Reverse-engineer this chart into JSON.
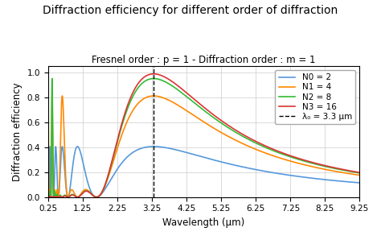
{
  "title": "Diffraction efficiency for different order of diffraction",
  "subtitle": "Fresnel order : p = 1 - Diffraction order : m = 1",
  "xlabel": "Wavelength (μm)",
  "ylabel": "Diffraction efficiency",
  "xlim": [
    0.25,
    9.25
  ],
  "ylim": [
    0.0,
    1.05
  ],
  "lambda0": 3.3,
  "xticks": [
    0.25,
    1.25,
    2.25,
    3.25,
    4.25,
    5.25,
    6.25,
    7.25,
    8.25,
    9.25
  ],
  "xtick_labels": [
    "0.25",
    "1.25",
    "2.25",
    "3.25",
    "4.25",
    "5.25",
    "6.25",
    "7.25",
    "8.25",
    "9.25"
  ],
  "yticks": [
    0.0,
    0.2,
    0.4,
    0.6,
    0.8,
    1.0
  ],
  "series": [
    {
      "N": 2,
      "p": 1,
      "m": 1,
      "color": "#5599dd",
      "label": "N0 = 2"
    },
    {
      "N": 4,
      "p": 1,
      "m": 1,
      "color": "#ff8800",
      "label": "N1 = 4"
    },
    {
      "N": 8,
      "p": 1,
      "m": 1,
      "color": "#33bb33",
      "label": "N2 = 8"
    },
    {
      "N": 16,
      "p": 1,
      "m": 1,
      "color": "#dd3333",
      "label": "N3 = 16"
    }
  ],
  "vline_color": "black",
  "vline_label": "λ₀ = 3.3 μm",
  "background_color": "#ffffff",
  "grid_color": "#cccccc",
  "title_fontsize": 10,
  "subtitle_fontsize": 8.5,
  "label_fontsize": 8.5,
  "tick_fontsize": 7.5,
  "legend_fontsize": 7.5
}
